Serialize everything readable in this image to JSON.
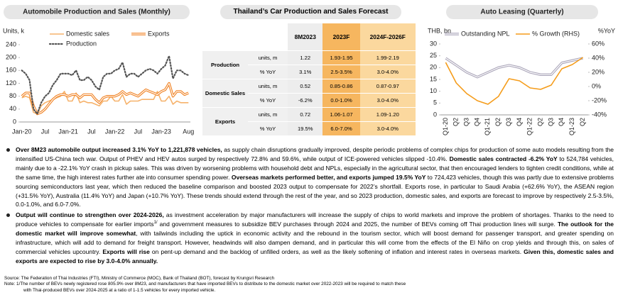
{
  "chart_data": [
    {
      "type": "line",
      "title": "Automobile Production and Sales (Monthly)",
      "y_label": "Units, k",
      "categories": [
        "Jan-20",
        null,
        null,
        null,
        null,
        null,
        "Jul",
        null,
        null,
        null,
        null,
        null,
        "Jan-21",
        null,
        null,
        null,
        null,
        null,
        "Jul",
        null,
        null,
        null,
        null,
        null,
        "Jan-22",
        null,
        null,
        null,
        null,
        null,
        "Jul",
        null,
        null,
        null,
        null,
        null,
        "Jan-23",
        null,
        null,
        null,
        null,
        null,
        null,
        "Aug"
      ],
      "ylim": [
        0,
        240
      ],
      "yticks": [
        0,
        40,
        80,
        120,
        160,
        200,
        240
      ],
      "series": [
        {
          "name": "Domestic sales",
          "color": "#f6b26b",
          "line_style": "solid",
          "values": [
            75,
            80,
            75,
            30,
            25,
            50,
            60,
            65,
            70,
            75,
            80,
            95,
            65,
            65,
            90,
            60,
            65,
            60,
            60,
            55,
            50,
            65,
            65,
            80,
            65,
            65,
            85,
            55,
            65,
            65,
            65,
            70,
            70,
            70,
            70,
            95,
            65,
            65,
            80,
            55,
            65,
            60,
            60,
            60
          ]
        },
        {
          "name": "Exports",
          "color": "#f07f1e",
          "line_style": "double",
          "values": [
            80,
            90,
            90,
            50,
            25,
            30,
            40,
            55,
            70,
            80,
            85,
            85,
            80,
            85,
            85,
            75,
            85,
            85,
            85,
            70,
            60,
            75,
            80,
            80,
            80,
            85,
            95,
            85,
            90,
            85,
            80,
            90,
            100,
            95,
            90,
            85,
            95,
            100,
            120,
            80,
            95,
            95,
            85,
            90
          ]
        },
        {
          "name": "Production",
          "color": "#555555",
          "line_style": "dotted",
          "values": [
            160,
            150,
            130,
            40,
            25,
            60,
            80,
            90,
            115,
            130,
            150,
            150,
            150,
            145,
            160,
            130,
            130,
            140,
            130,
            110,
            100,
            140,
            150,
            150,
            160,
            165,
            185,
            140,
            150,
            150,
            140,
            150,
            160,
            165,
            160,
            150,
            165,
            175,
            205,
            135,
            160,
            160,
            150,
            145
          ]
        }
      ]
    },
    {
      "type": "line",
      "title": "Auto Leasing (Quarterly)",
      "y_label": "THB, bn",
      "y2_label": "%YoY",
      "categories": [
        "Q1-20",
        "Q2",
        "Q3",
        "Q4",
        "Q1-21",
        "Q2",
        "Q3",
        "Q4",
        "Q1-22",
        "Q2",
        "Q3",
        "Q4",
        "Q1-23",
        "Q2"
      ],
      "ylim": [
        0,
        30
      ],
      "yticks": [
        0,
        5,
        10,
        15,
        20,
        25,
        30
      ],
      "y2lim": [
        -40,
        60
      ],
      "y2ticks": [
        {
          "value": -40,
          "label": "-40%"
        },
        {
          "value": -20,
          "label": "-20%"
        },
        {
          "value": 0,
          "label": "0%"
        },
        {
          "value": 20,
          "label": "20%"
        },
        {
          "value": 40,
          "label": "40%"
        },
        {
          "value": 60,
          "label": "60%"
        }
      ],
      "series": [
        {
          "name": "Outstanding NPL",
          "color": "#a9a4b8",
          "line_style": "double",
          "values": [
            24,
            21,
            18,
            16,
            18,
            20,
            21,
            20,
            18,
            17,
            17,
            22,
            23,
            24
          ]
        },
        {
          "name": "% Growth (RHS)",
          "color": "#f59c1a",
          "line_style": "solid",
          "axis": "y2",
          "values": [
            34,
            5,
            -10,
            -20,
            -25,
            -14,
            11,
            8,
            -2,
            -4,
            2,
            25,
            31,
            41
          ]
        }
      ]
    }
  ],
  "table": {
    "title": "Thailand’s Car Production and Sales Forecast",
    "header": [
      "8M2023",
      "2023F",
      "2024F-2026F"
    ],
    "groups": [
      {
        "label": "Production",
        "rows": [
          {
            "metric": "units, m",
            "cells": [
              "1.22",
              "1.93-1.95",
              "1.99-2.19"
            ]
          },
          {
            "metric": "% YoY",
            "cells": [
              "3.1%",
              "2.5-3.5%",
              "3.0-4.0%"
            ]
          }
        ]
      },
      {
        "label": "Domestic Sales",
        "rows": [
          {
            "metric": "units, m",
            "cells": [
              "0.52",
              "0.85-0.86",
              "0.87-0.97"
            ]
          },
          {
            "metric": "% YoY",
            "cells": [
              "-6.2%",
              "0.0-1.0%",
              "3.0-4.0%"
            ]
          }
        ]
      },
      {
        "label": "Exports",
        "rows": [
          {
            "metric": "units, m",
            "cells": [
              "0.72",
              "1.06-1.07",
              "1.09-1.20"
            ]
          },
          {
            "metric": "% YoY",
            "cells": [
              "19.5%",
              "6.0-7.0%",
              "3.0-4.0%"
            ]
          }
        ]
      }
    ]
  },
  "body": [
    {
      "runs": [
        {
          "text": "Over 8M23 automobile output increased 3.1% YoY to 1,221,878 vehicles,",
          "bold": true
        },
        {
          "text": " as supply chain disruptions gradually improved, despite periodic problems of complex chips for production of some auto models resulting from the intensified US-China tech war. Output of PHEV and HEV autos surged by respectively 72.8% and 59.6%, while output of ICE-powered vehicles slipped -10.4%. "
        },
        {
          "text": "Domestic sales contracted -6.2% YoY",
          "bold": true
        },
        {
          "text": " to 524,784 vehicles, mainly due to a -22.1% YoY crash in pickup sales. This was driven by worsening problems with household debt and NPLs, especially in the agricultural sector, that then encouraged lenders to tighten credit conditions, while at the same time, the high interest rates further ate into consumer spending power. "
        },
        {
          "text": "Overseas markets performed better, and exports jumped 19.5% YoY",
          "bold": true
        },
        {
          "text": " to 724,423 vehicles, though this was partly due to extensive problems sourcing semiconductors last year, which then reduced the baseline comparison and boosted 2023 output to compensate for 2022’s shortfall. Exports rose, in particular to Saudi Arabia (+62.6% YoY), the ASEAN region (+31.5% YoY), Australia (11.4% YoY) and Japan (+10.7% YoY). These trends should extend through the rest of the year, and so 2023 production, domestic sales, and exports are forecast to improve by respectively 2.5-3.5%, 0.0-1.0%, and 6.0-7.0%."
        }
      ]
    },
    {
      "runs": [
        {
          "text": "Output will continue to strengthen over 2024-2026,",
          "bold": true
        },
        {
          "text": " as investment acceleration by major manufacturers will increase the supply of chips to world markets and improve the problem of shortages. Thanks to the need to produce vehicles to compensate for earlier imports"
        },
        {
          "text": "1/",
          "sup": true
        },
        {
          "text": " and government measures to subsidize BEV purchases through 2024 and 2025, the number of BEVs coming off Thai production lines will surge. "
        },
        {
          "text": "The outlook for the domestic market will improve somewhat",
          "bold": true
        },
        {
          "text": ", with tailwinds including the uptick in economic activity and the rebound in the tourism sector, which will boost demand for passenger transport, and greater spending on infrastructure, which will add to demand for freight transport. However, headwinds will also dampen demand, and in particular this will come from the effects of the El Niño on crop yields and through this, on sales of commercial vehicles upcountry. "
        },
        {
          "text": "Exports will rise",
          "bold": true
        },
        {
          "text": " on pent-up demand and the backlog of unfilled orders, as well as the likely softening of inflation and interest rates in overseas markets. "
        },
        {
          "text": "Given this, domestic sales and exports are expected to rise by 3.0-4.0% annually.",
          "bold": true
        }
      ]
    }
  ],
  "footer": {
    "source": "Source: The Federation of Thai Industries (FTI), Ministry of Commerce (MOC), Bank of Thailand (BOT), forecast by Krungsri Research",
    "note": [
      "Note: 1/The number of BEVs newly registered rose 805.9% over 8M23, and manufacturers that have imported BEVs to distribute to the domestic market over 2022-2023 will be required to match these",
      "with Thai-produced BEVs over 2024-2025 at a ratio of 1-1.5 vehicles for every imported vehicle."
    ]
  }
}
